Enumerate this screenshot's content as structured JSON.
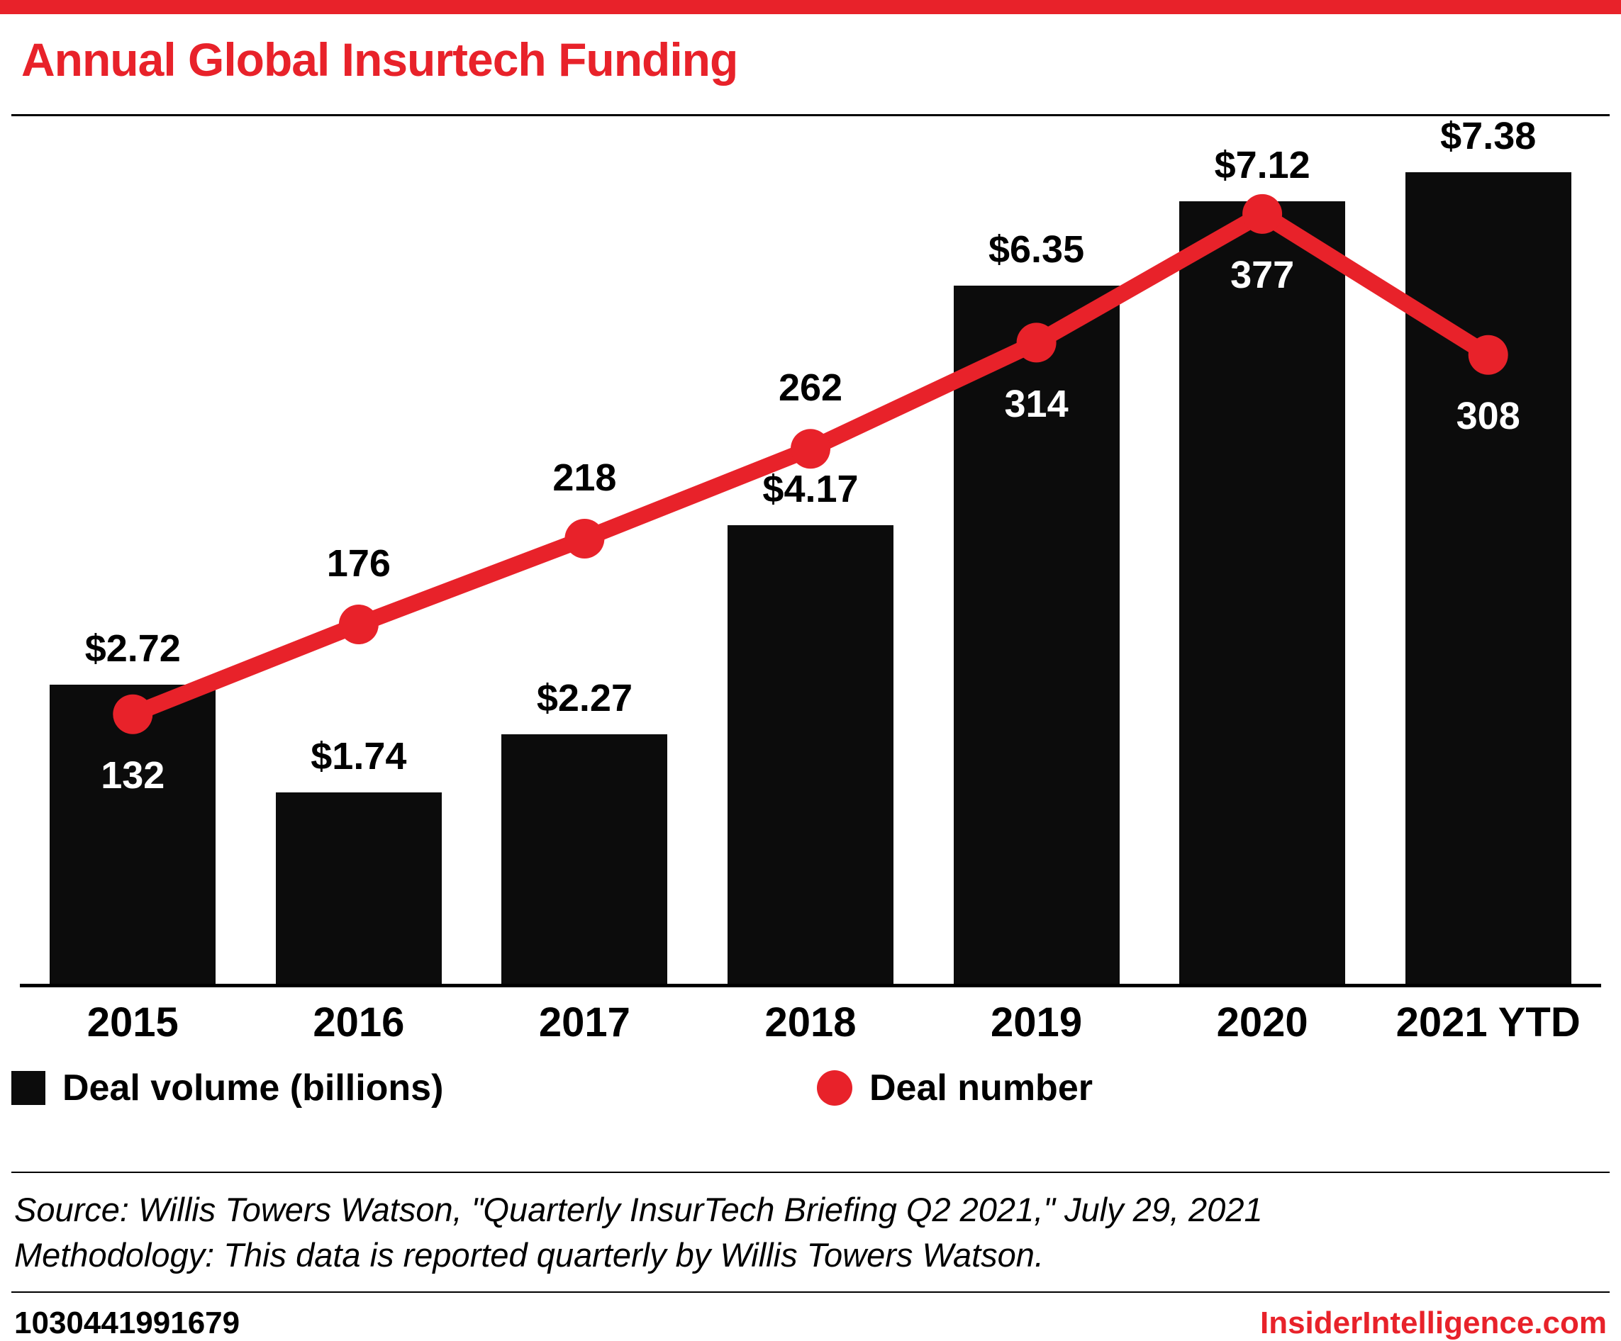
{
  "header": {
    "title": "Annual Global Insurtech Funding"
  },
  "chart_data": {
    "type": "bar+line",
    "title": "Annual Global Insurtech Funding",
    "categories": [
      "2015",
      "2016",
      "2017",
      "2018",
      "2019",
      "2020",
      "2021 YTD"
    ],
    "series": [
      {
        "name": "Deal volume (billions)",
        "type": "bar",
        "color": "#0c0c0c",
        "values": [
          2.72,
          1.74,
          2.27,
          4.17,
          6.35,
          7.12,
          7.38
        ],
        "labels": [
          "$2.72",
          "$1.74",
          "$2.27",
          "$4.17",
          "$6.35",
          "$7.12",
          "$7.38"
        ]
      },
      {
        "name": "Deal number",
        "type": "line",
        "color": "#e8222a",
        "values": [
          132,
          176,
          218,
          262,
          314,
          377,
          308
        ]
      }
    ],
    "bar_axis_max": 7.8,
    "number_axis": {
      "min": 0,
      "max": 420
    },
    "grid": false,
    "legend_position": "bottom"
  },
  "legend": {
    "items": [
      {
        "label": "Deal volume (billions)",
        "swatch": "black-square"
      },
      {
        "label": "Deal number",
        "swatch": "red-dot"
      }
    ]
  },
  "source": {
    "line1": "Source: Willis Towers Watson, \"Quarterly InsurTech Briefing Q2 2021,\" July 29, 2021",
    "line2": "Methodology: This data is reported quarterly by Willis Towers Watson."
  },
  "footer": {
    "id": "1030441991679",
    "brand": "InsiderIntelligence.com"
  },
  "colors": {
    "accent": "#e8222a",
    "bar": "#0c0c0c"
  }
}
